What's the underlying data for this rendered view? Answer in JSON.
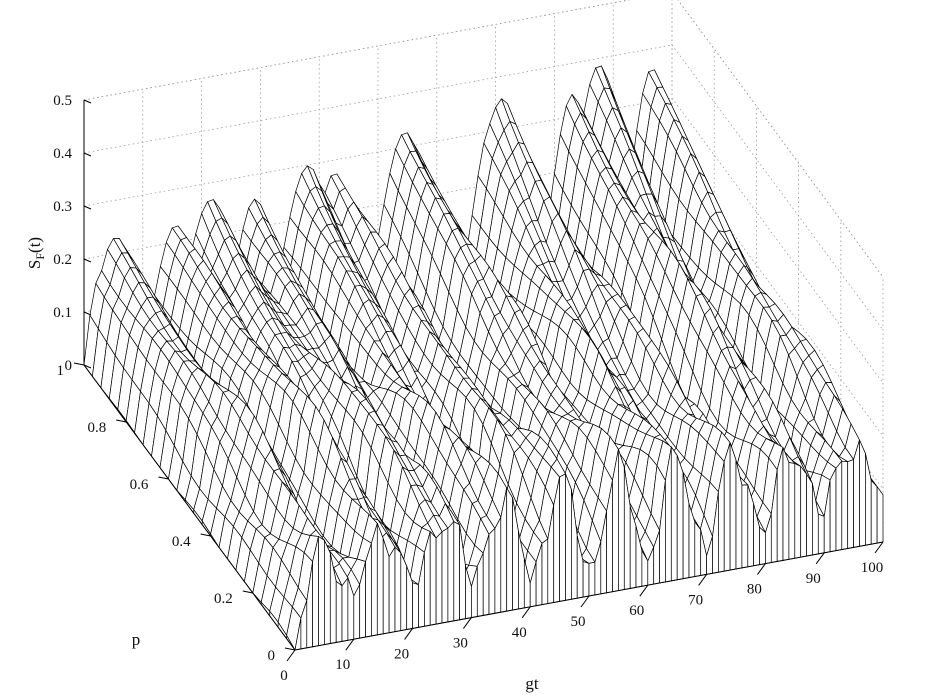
{
  "chart_data": {
    "type": "surface",
    "title": "",
    "xlabel": "gt",
    "ylabel": "p",
    "zlabel_main": "S",
    "zlabel_sub": "F",
    "zlabel_tail": "(t)",
    "xlim": [
      0,
      100
    ],
    "ylim": [
      0,
      1
    ],
    "zlim": [
      0,
      0.5
    ],
    "grid": true,
    "mesh_color": "#000000",
    "face_color": "#ffffff",
    "grid_color": "#9a9a9a",
    "x_ticks": [
      "0",
      "10",
      "20",
      "30",
      "40",
      "50",
      "60",
      "70",
      "80",
      "90",
      "100"
    ],
    "y_ticks": [
      "0",
      "0.2",
      "0.4",
      "0.6",
      "0.8",
      "1"
    ],
    "z_ticks": [
      "0",
      "0.1",
      "0.2",
      "0.3",
      "0.4",
      "0.5"
    ],
    "surface_description": "Entropy S_F(t) versus gt (0-100) and p (0-1). At p=1 the surface is a smooth oscillation with peaks near 0.25; as p decreases the oscillations shift and beat, and at p=0 it shows rapid collapse/revival oscillations between 0 and about 0.2.",
    "p1_peaks": [
      {
        "gt": 5,
        "value": 0.25
      },
      {
        "gt": 22,
        "value": 0.33
      },
      {
        "gt": 30,
        "value": 0.36
      },
      {
        "gt": 46,
        "value": 0.38
      },
      {
        "gt": 58,
        "value": 0.4
      },
      {
        "gt": 72,
        "value": 0.42
      },
      {
        "gt": 80,
        "value": 0.39
      }
    ]
  }
}
